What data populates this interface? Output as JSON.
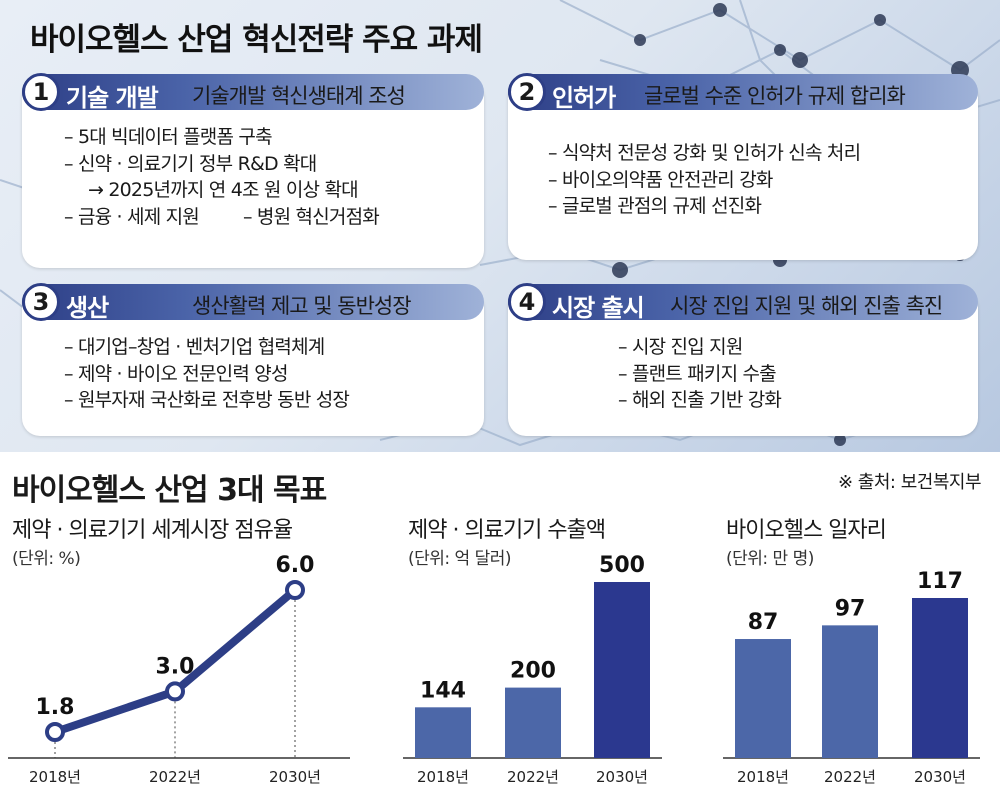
{
  "title": "바이오헬스 산업 혁신전략 주요 과제",
  "tasks": [
    {
      "num": "1",
      "name": "기술 개발",
      "subtitle": "기술개발 혁신생태계 조성",
      "items": [
        "– 5대 빅데이터 플랫폼 구축",
        "– 신약 · 의료기기 정부 R&D 확대",
        "→ 2025년까지 연 4조 원 이상 확대",
        "– 금융 · 세제 지원",
        "– 병원 혁신거점화"
      ]
    },
    {
      "num": "2",
      "name": "인허가",
      "subtitle": "글로벌 수준 인허가 규제 합리화",
      "items": [
        "– 식약처 전문성 강화 및 인허가 신속 처리",
        "– 바이오의약품 안전관리 강화",
        "– 글로벌 관점의 규제 선진화"
      ]
    },
    {
      "num": "3",
      "name": "생산",
      "subtitle": "생산활력 제고 및 동반성장",
      "items": [
        "– 대기업–창업 · 벤처기업 협력체계",
        "– 제약 · 바이오 전문인력 양성",
        "– 원부자재 국산화로 전후방 동반 성장"
      ]
    },
    {
      "num": "4",
      "name": "시장 출시",
      "subtitle": "시장 진입 지원 및 해외 진출 촉진",
      "items": [
        "– 시장 진입 지원",
        "– 플랜트 패키지 수출",
        "– 해외 진출 기반 강화"
      ]
    }
  ],
  "goals_title": "바이오헬스 산업 3대 목표",
  "source": "※ 출처: 보건복지부",
  "colors": {
    "navy": "#2d3e86",
    "bar_light": "#4c67a8",
    "bar_dark": "#2b388f"
  },
  "chart_data": [
    {
      "type": "line",
      "title": "제약 · 의료기기 세계시장 점유율",
      "unit": "(단위: %)",
      "categories": [
        "2018년",
        "2022년",
        "2030년"
      ],
      "values": [
        1.8,
        3.0,
        6.0
      ],
      "value_labels": [
        "1.8",
        "3.0",
        "6.0"
      ],
      "ylim": [
        0,
        7
      ]
    },
    {
      "type": "bar",
      "title": "제약 · 의료기기 수출액",
      "unit": "(단위: 억 달러)",
      "categories": [
        "2018년",
        "2022년",
        "2030년"
      ],
      "values": [
        144,
        200,
        500
      ],
      "ylim": [
        0,
        560
      ]
    },
    {
      "type": "bar",
      "title": "바이오헬스 일자리",
      "unit": "(단위: 만 명)",
      "categories": [
        "2018년",
        "2022년",
        "2030년"
      ],
      "values": [
        87,
        97,
        117
      ],
      "ylim": [
        0,
        130
      ]
    }
  ]
}
